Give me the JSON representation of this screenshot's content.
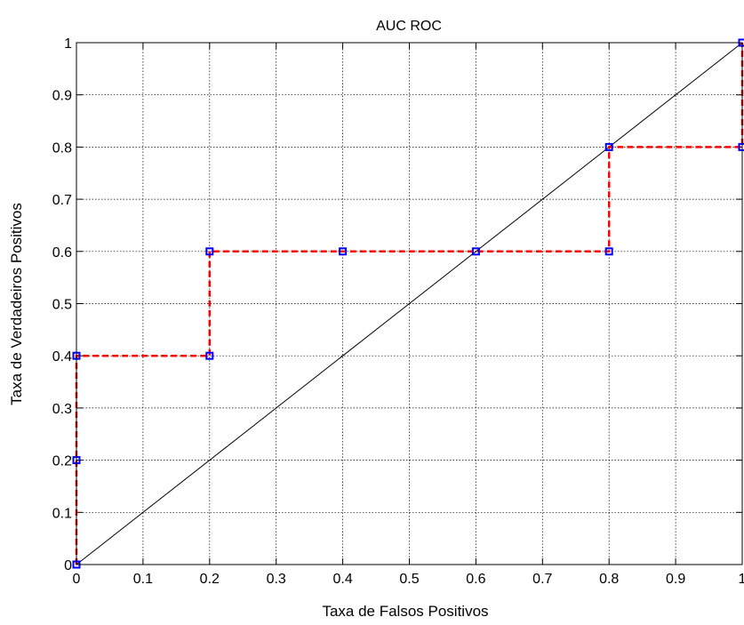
{
  "chart_data": {
    "type": "line",
    "title": "AUC ROC",
    "xlabel": "Taxa de Falsos Positivos",
    "ylabel": "Taxa de Verdadeiros Positivos",
    "xlim": [
      0,
      1
    ],
    "ylim": [
      0,
      1
    ],
    "grid": true,
    "x_ticks": [
      0,
      0.1,
      0.2,
      0.3,
      0.4,
      0.5,
      0.6,
      0.7,
      0.8,
      0.9,
      1
    ],
    "x_tick_labels": [
      "0",
      "0.1",
      "0.2",
      "0.3",
      "0.4",
      "0.5",
      "0.6",
      "0.7",
      "0.8",
      "0.9",
      "1"
    ],
    "y_ticks": [
      0,
      0.1,
      0.2,
      0.3,
      0.4,
      0.5,
      0.6,
      0.7,
      0.8,
      0.9,
      1
    ],
    "y_tick_labels": [
      "0",
      "0.1",
      "0.2",
      "0.3",
      "0.4",
      "0.5",
      "0.6",
      "0.7",
      "0.8",
      "0.9",
      "1"
    ],
    "series": [
      {
        "style": "dashed-step-with-square-markers",
        "line_color": "#ff0000",
        "marker_color": "#0000ff",
        "x": [
          0,
          0,
          0,
          0.2,
          0.2,
          0.4,
          0.6,
          0.8,
          0.8,
          1,
          1
        ],
        "y": [
          0,
          0.2,
          0.4,
          0.4,
          0.6,
          0.6,
          0.6,
          0.6,
          0.8,
          0.8,
          1
        ]
      },
      {
        "style": "solid-diagonal",
        "line_color": "#000000",
        "x": [
          0,
          1
        ],
        "y": [
          0,
          1
        ]
      }
    ]
  }
}
